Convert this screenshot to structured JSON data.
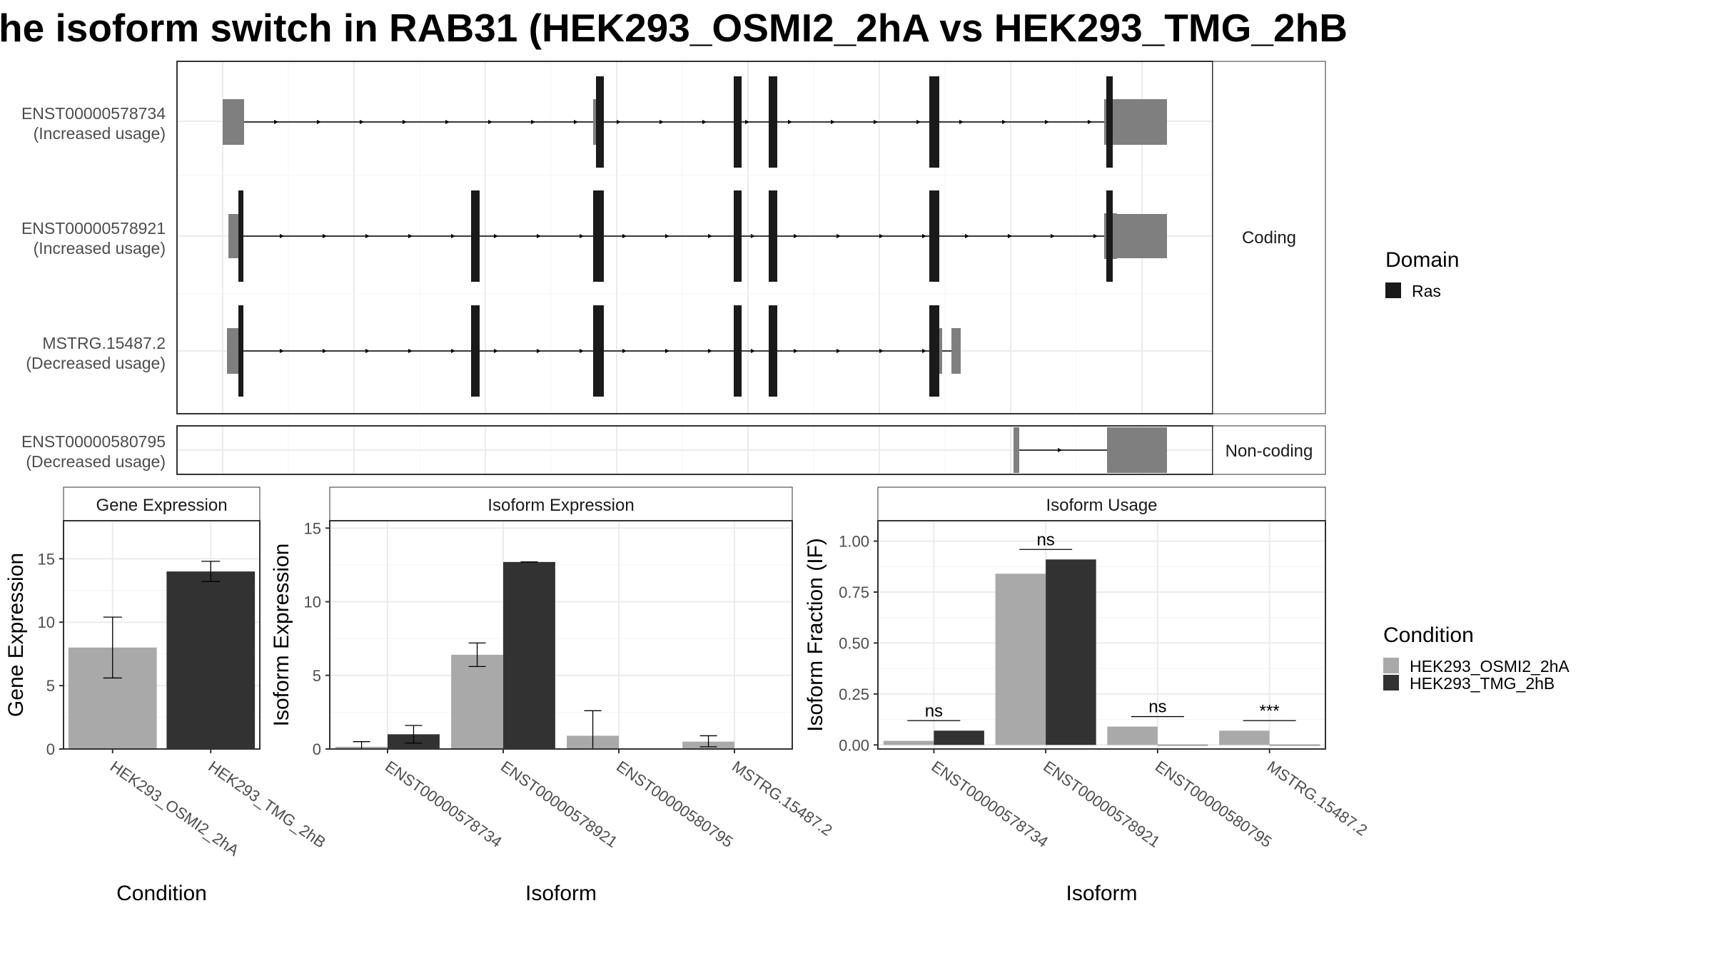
{
  "title": "he isoform switch in RAB31 (HEK293_OSMI2_2hA vs HEK293_TMG_2hB",
  "colors": {
    "condition_a": "#a9a9a9",
    "condition_b": "#323232",
    "utr": "#7f7f7f",
    "domain_ras": "#1a1a1a",
    "strip_fill": "#ffffff",
    "grid": "#ebebeb",
    "panel_border": "#333333"
  },
  "structure": {
    "facets": [
      "Coding",
      "Non-coding"
    ],
    "transcripts": [
      {
        "id": "ENST00000578734",
        "usage": "(Increased usage)",
        "facet": "Coding"
      },
      {
        "id": "ENST00000578921",
        "usage": "(Increased usage)",
        "facet": "Coding"
      },
      {
        "id": "MSTRG.15487.2",
        "usage": "(Decreased usage)",
        "facet": "Coding"
      },
      {
        "id": "ENST00000580795",
        "usage": "(Decreased usage)",
        "facet": "Non-coding"
      }
    ]
  },
  "legend": {
    "domain_title": "Domain",
    "domain_items": [
      {
        "label": "Ras",
        "color": "#1a1a1a"
      }
    ],
    "condition_title": "Condition",
    "condition_items": [
      {
        "label": "HEK293_OSMI2_2hA",
        "color": "#a9a9a9"
      },
      {
        "label": "HEK293_TMG_2hB",
        "color": "#323232"
      }
    ]
  },
  "chart_data": [
    {
      "type": "bar",
      "title": "Gene Expression",
      "xlabel": "Condition",
      "ylabel": "Gene Expression",
      "categories": [
        "HEK293_OSMI2_2hA",
        "HEK293_TMG_2hB"
      ],
      "values": [
        8.0,
        14.0
      ],
      "error_low": [
        5.6,
        13.2
      ],
      "error_high": [
        10.4,
        14.8
      ],
      "ylim": [
        0,
        18
      ],
      "yticks": [
        0,
        5,
        10,
        15
      ]
    },
    {
      "type": "bar",
      "title": "Isoform Expression",
      "xlabel": "Isoform",
      "ylabel": "Isoform Expression",
      "categories": [
        "ENST00000578734",
        "ENST00000578921",
        "ENST00000580795",
        "MSTRG.15487.2"
      ],
      "series": [
        {
          "name": "HEK293_OSMI2_2hA",
          "values": [
            0.15,
            6.4,
            0.9,
            0.5
          ],
          "error_low": [
            0.0,
            5.6,
            0.0,
            0.15
          ],
          "error_high": [
            0.5,
            7.2,
            2.6,
            0.9
          ]
        },
        {
          "name": "HEK293_TMG_2hB",
          "values": [
            1.0,
            12.7,
            0.0,
            0.0
          ],
          "error_low": [
            0.4,
            12.7,
            0.0,
            0.0
          ],
          "error_high": [
            1.6,
            12.7,
            0.0,
            0.0
          ]
        }
      ],
      "ylim": [
        0,
        15.5
      ],
      "yticks": [
        0,
        5,
        10,
        15
      ]
    },
    {
      "type": "bar",
      "title": "Isoform Usage",
      "xlabel": "Isoform",
      "ylabel": "Isoform Fraction (IF)",
      "categories": [
        "ENST00000578734",
        "ENST00000578921",
        "ENST00000580795",
        "MSTRG.15487.2"
      ],
      "series": [
        {
          "name": "HEK293_OSMI2_2hA",
          "values": [
            0.02,
            0.84,
            0.09,
            0.07
          ]
        },
        {
          "name": "HEK293_TMG_2hB",
          "values": [
            0.07,
            0.91,
            0.0,
            0.0
          ]
        }
      ],
      "significance": [
        "ns",
        "ns",
        "ns",
        "***"
      ],
      "ylim": [
        -0.02,
        1.1
      ],
      "yticks": [
        0.0,
        0.25,
        0.5,
        0.75,
        1.0
      ],
      "ytick_labels": [
        "0.00",
        "0.25",
        "0.50",
        "0.75",
        "1.00"
      ]
    }
  ]
}
